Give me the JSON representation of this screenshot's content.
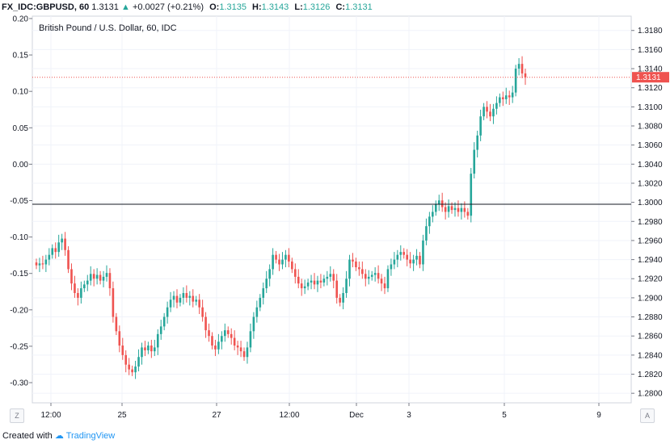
{
  "header": {
    "symbol": "FX_IDC:GBPUSD, 60",
    "last": "1.3131",
    "arrow": "▲",
    "change": "+0.0027 (+0.21%)",
    "o_label": "O:",
    "o_value": "1.3135",
    "h_label": "H:",
    "h_value": "1.3143",
    "l_label": "L:",
    "l_value": "1.3126",
    "c_label": "C:",
    "c_value": "1.3131"
  },
  "footer": {
    "created_with": "Created with",
    "brand": "TradingView"
  },
  "corner_left": "Z",
  "corner_right": "A",
  "colors": {
    "up": "#26a69a",
    "down": "#ef5350",
    "grid": "#f0f3fa",
    "axis": "#787b86",
    "last_price": "#ef5350"
  },
  "chart_data": {
    "type": "candlestick",
    "title": "British Pound / U.S. Dollar, 60, IDC",
    "right_axis": {
      "range": [
        1.279,
        1.3195
      ],
      "ticks": [
        "1.3180",
        "1.3160",
        "1.3140",
        "1.3120",
        "1.3100",
        "1.3080",
        "1.3060",
        "1.3040",
        "1.3020",
        "1.3000",
        "1.2980",
        "1.2960",
        "1.2940",
        "1.2920",
        "1.2900",
        "1.2880",
        "1.2860",
        "1.2840",
        "1.2820",
        "1.2800"
      ]
    },
    "left_axis": {
      "range": [
        -0.3277,
        0.2033
      ],
      "ticks": [
        "0.20",
        "0.15",
        "0.10",
        "0.05",
        "0.00",
        "-0.05",
        "-0.10",
        "-0.15",
        "-0.20",
        "-0.25",
        "-0.30"
      ]
    },
    "x_ticks": [
      "12:00",
      "25",
      "27",
      "12:00",
      "Dec",
      "3",
      "5",
      "9"
    ],
    "horizontal_line": 1.2998,
    "last_price": {
      "value": 1.3131,
      "label": "1.3131"
    },
    "closes": [
      1.2934,
      1.2936,
      1.2935,
      1.294,
      1.2945,
      1.2952,
      1.2948,
      1.2958,
      1.2962,
      1.295,
      1.293,
      1.2915,
      1.2905,
      1.29,
      1.291,
      1.2914,
      1.2918,
      1.2925,
      1.292,
      1.2924,
      1.2918,
      1.2922,
      1.2926,
      1.291,
      1.288,
      1.2865,
      1.285,
      1.284,
      1.283,
      1.2825,
      1.2822,
      1.2828,
      1.2838,
      1.2848,
      1.2845,
      1.285,
      1.2844,
      1.2848,
      1.2862,
      1.287,
      1.288,
      1.289,
      1.2898,
      1.2902,
      1.2895,
      1.29,
      1.2905,
      1.29,
      1.2902,
      1.2896,
      1.2898,
      1.289,
      1.288,
      1.2866,
      1.286,
      1.285,
      1.2846,
      1.2854,
      1.286,
      1.2866,
      1.2862,
      1.2858,
      1.285,
      1.2848,
      1.2844,
      1.2838,
      1.2848,
      1.2865,
      1.288,
      1.289,
      1.29,
      1.291,
      1.292,
      1.293,
      1.2945,
      1.294,
      1.2935,
      1.294,
      1.2945,
      1.2938,
      1.293,
      1.2922,
      1.2915,
      1.291,
      1.2912,
      1.2916,
      1.2918,
      1.2914,
      1.2918,
      1.2916,
      1.292,
      1.2922,
      1.2925,
      1.2918,
      1.29,
      1.2895,
      1.2905,
      1.292,
      1.294,
      1.2938,
      1.2932,
      1.293,
      1.2925,
      1.292,
      1.2922,
      1.2924,
      1.2926,
      1.292,
      1.2915,
      1.291,
      1.293,
      1.2935,
      1.294,
      1.2945,
      1.2948,
      1.2945,
      1.294,
      1.2936,
      1.294,
      1.2944,
      1.2935,
      1.296,
      1.2975,
      1.2985,
      1.299,
      1.2998,
      1.3002,
      1.2995,
      1.299,
      1.2996,
      1.2992,
      1.2994,
      1.299,
      1.2994,
      1.299,
      1.2986,
      1.303,
      1.3055,
      1.307,
      1.309,
      1.31,
      1.3095,
      1.309,
      1.3098,
      1.3104,
      1.311,
      1.3108,
      1.3112,
      1.311,
      1.3115,
      1.314,
      1.3145,
      1.3135,
      1.3131
    ]
  }
}
